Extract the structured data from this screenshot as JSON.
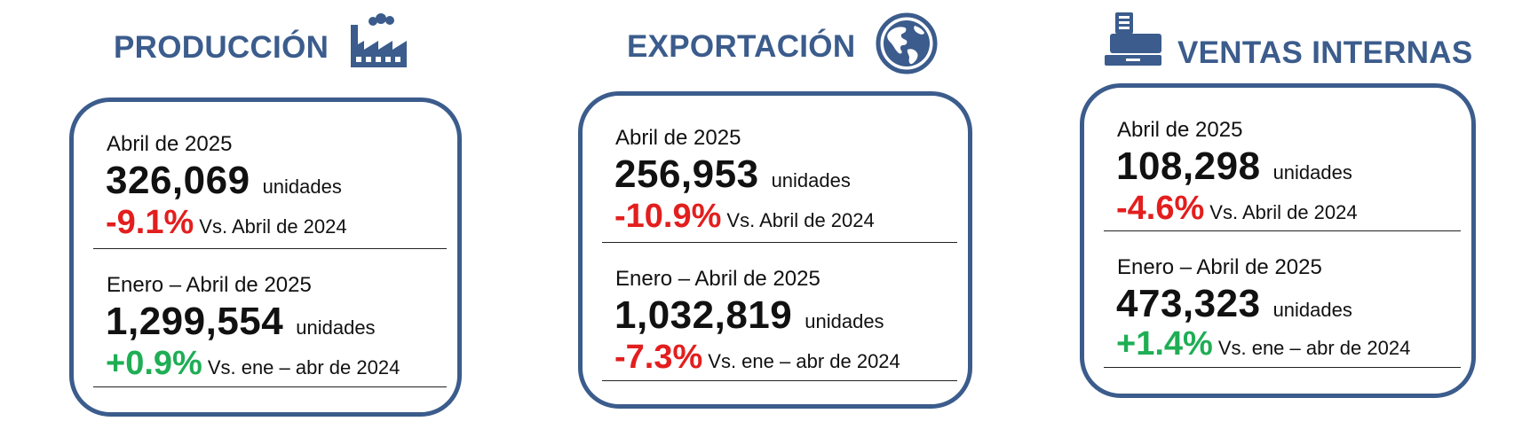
{
  "colors": {
    "brand": "#3b5c8c",
    "negative": "#e31e1e",
    "positive": "#1fae55"
  },
  "sections": [
    {
      "title": "PRODUCCIÓN",
      "icon": "factory-icon",
      "monthly": {
        "period": "Abril de 2025",
        "value": "326,069",
        "unit": "unidades",
        "change": "-9.1%",
        "direction": "negative",
        "comparison": "Vs. Abril de 2024"
      },
      "ytd": {
        "period": "Enero – Abril de 2025",
        "value": "1,299,554",
        "unit": "unidades",
        "change": "+0.9%",
        "direction": "positive",
        "comparison": "Vs. ene – abr de 2024"
      }
    },
    {
      "title": "EXPORTACIÓN",
      "icon": "globe-icon",
      "monthly": {
        "period": "Abril de 2025",
        "value": "256,953",
        "unit": "unidades",
        "change": "-10.9%",
        "direction": "negative",
        "comparison": "Vs. Abril de 2024"
      },
      "ytd": {
        "period": "Enero – Abril de 2025",
        "value": "1,032,819",
        "unit": "unidades",
        "change": "-7.3%",
        "direction": "negative",
        "comparison": "Vs. ene – abr de 2024"
      }
    },
    {
      "title": "VENTAS INTERNAS",
      "icon": "cash-register-icon",
      "monthly": {
        "period": "Abril de 2025",
        "value": "108,298",
        "unit": "unidades",
        "change": "-4.6%",
        "direction": "negative",
        "comparison": "Vs. Abril de 2024"
      },
      "ytd": {
        "period": "Enero – Abril de 2025",
        "value": "473,323",
        "unit": "unidades",
        "change": "+1.4%",
        "direction": "positive",
        "comparison": "Vs. ene – abr de 2024"
      }
    }
  ]
}
